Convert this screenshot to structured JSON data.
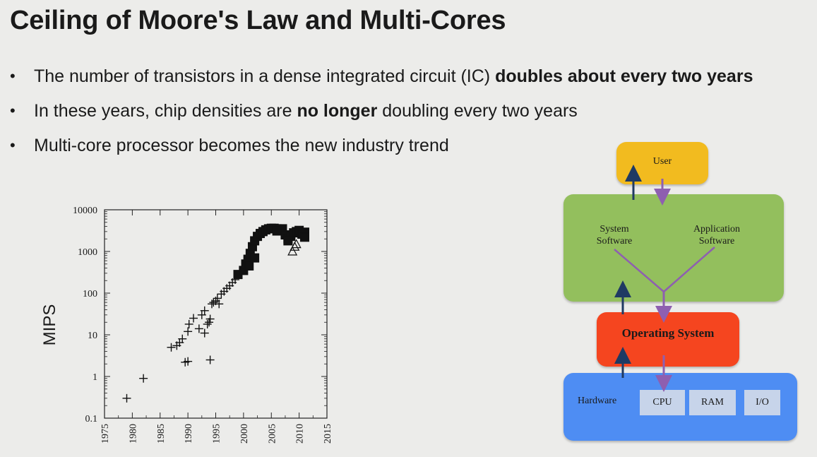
{
  "slide": {
    "title": "Ceiling of Moore's Law and Multi-Cores",
    "bullets": [
      {
        "before": "The number of transistors in a dense integrated circuit (IC) ",
        "bold": "doubles about every two years",
        "after": ""
      },
      {
        "before": "In these years, chip densities are ",
        "bold": "no longer",
        "after": " doubling every two years"
      },
      {
        "before": "Multi-core processor becomes the new industry trend",
        "bold": "",
        "after": ""
      }
    ],
    "bullet_symbol": "•"
  },
  "chart_data": {
    "type": "scatter",
    "ylabel": "MIPS",
    "yscale": "log",
    "ylim": [
      0.1,
      10000
    ],
    "xlim": [
      1975,
      2015
    ],
    "x_ticks": [
      "1975",
      "1980",
      "1985",
      "1990",
      "1995",
      "2000",
      "2005",
      "2010",
      "2015"
    ],
    "y_ticks": [
      "0.1",
      "1",
      "10",
      "100",
      "1000",
      "10000"
    ],
    "grid": false,
    "series": [
      {
        "marker": "plus",
        "points": [
          [
            1979,
            0.3
          ],
          [
            1982,
            0.9
          ],
          [
            1987,
            5
          ],
          [
            1988,
            5.5
          ],
          [
            1988.5,
            6.5
          ],
          [
            1989,
            8
          ],
          [
            1989.5,
            2.2
          ],
          [
            1990,
            2.3
          ],
          [
            1990,
            12
          ],
          [
            1990.2,
            18
          ],
          [
            1991,
            25
          ],
          [
            1992,
            14
          ],
          [
            1992.5,
            30
          ],
          [
            1993,
            38
          ],
          [
            1993,
            11
          ],
          [
            1993.5,
            18
          ],
          [
            1993.8,
            20
          ],
          [
            1994,
            24
          ],
          [
            1994,
            2.5
          ],
          [
            1994.3,
            55
          ],
          [
            1994.6,
            60
          ],
          [
            1995,
            65
          ],
          [
            1995.3,
            75
          ],
          [
            1995.6,
            55
          ],
          [
            1996,
            95
          ],
          [
            1996.5,
            110
          ],
          [
            1997,
            130
          ],
          [
            1997.5,
            150
          ],
          [
            1998,
            180
          ],
          [
            1998.5,
            210
          ]
        ]
      },
      {
        "marker": "square",
        "points": [
          [
            1999,
            280
          ],
          [
            2000,
            350
          ],
          [
            2000.4,
            500
          ],
          [
            2000.8,
            650
          ],
          [
            2001.2,
            900
          ],
          [
            2001.6,
            1300
          ],
          [
            2002,
            1800
          ],
          [
            2002.5,
            2300
          ],
          [
            2003,
            2700
          ],
          [
            2003.5,
            3000
          ],
          [
            2004,
            3300
          ],
          [
            2004.5,
            3500
          ],
          [
            2005,
            3600
          ],
          [
            2005.5,
            3600
          ],
          [
            2006,
            3500
          ],
          [
            2006.5,
            3400
          ],
          [
            2007,
            3500
          ],
          [
            2007.5,
            2500
          ],
          [
            2008,
            2000
          ],
          [
            2008.5,
            2300
          ],
          [
            2009,
            2800
          ],
          [
            2009.5,
            3000
          ],
          [
            2010,
            3200
          ],
          [
            2010.5,
            2600
          ],
          [
            2011,
            2900
          ],
          [
            2011,
            2200
          ],
          [
            2002,
            700
          ],
          [
            2001,
            450
          ],
          [
            2008,
            1800
          ],
          [
            2006,
            3100
          ]
        ]
      },
      {
        "marker": "triangle",
        "points": [
          [
            2008.8,
            1000
          ],
          [
            2009.2,
            1300
          ],
          [
            2009.5,
            1500
          ]
        ]
      }
    ]
  },
  "diagram": {
    "user": "User",
    "system_software": [
      "System",
      "Software"
    ],
    "application_software": [
      "Application",
      "Software"
    ],
    "operating_system": "Operating System",
    "hardware": "Hardware",
    "chips": [
      "CPU",
      "RAM",
      "I/O"
    ],
    "colors": {
      "user": "#f2bb1f",
      "software": "#93bf5d",
      "os": "#f5451f",
      "hardware": "#4e8df3",
      "arrow_up": "#1f3a63",
      "arrow_down": "#8e5fb0"
    }
  }
}
